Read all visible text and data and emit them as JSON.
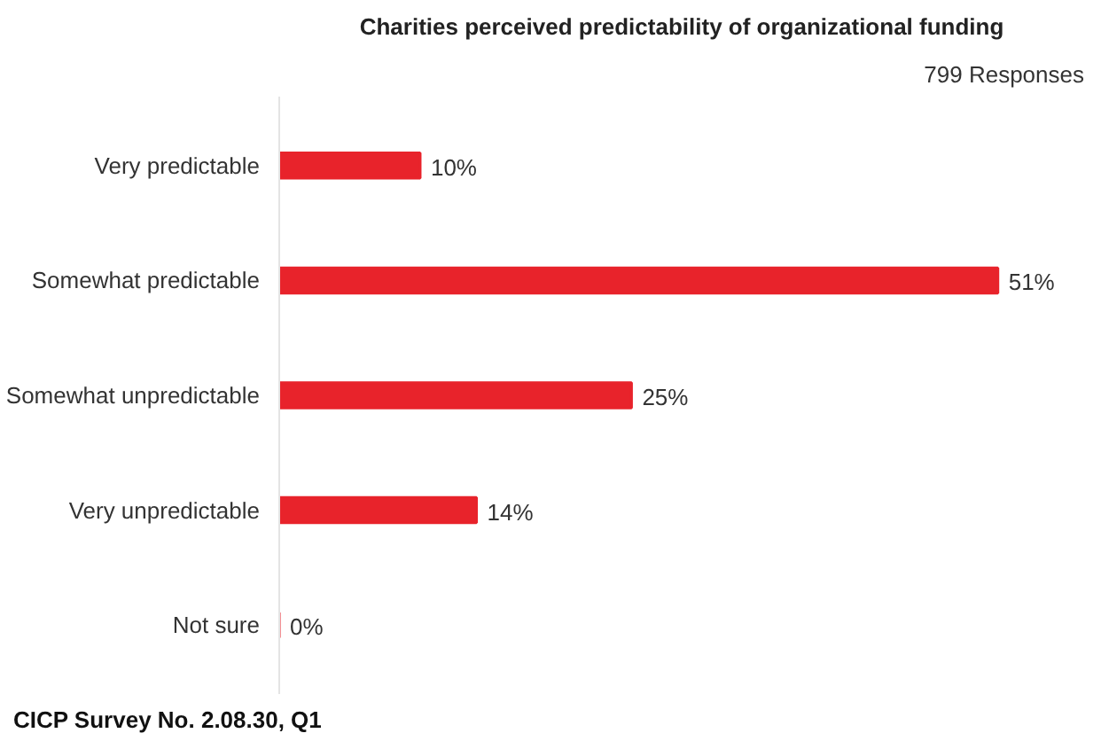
{
  "chart_data": {
    "type": "bar",
    "orientation": "horizontal",
    "title": "Charities perceived predictability of organizational funding",
    "subtitle": "799 Responses",
    "categories": [
      "Very predictable",
      "Somewhat predictable",
      "Somewhat unpredictable",
      "Very unpredictable",
      "Not sure"
    ],
    "values": [
      10,
      51,
      25,
      14,
      0
    ],
    "color": "#e8232b",
    "value_labels": [
      "10%",
      "51%",
      "25%",
      "14%",
      "0%"
    ],
    "annotations": [
      "CICP Survey No. 2.08.30, Q1"
    ]
  }
}
